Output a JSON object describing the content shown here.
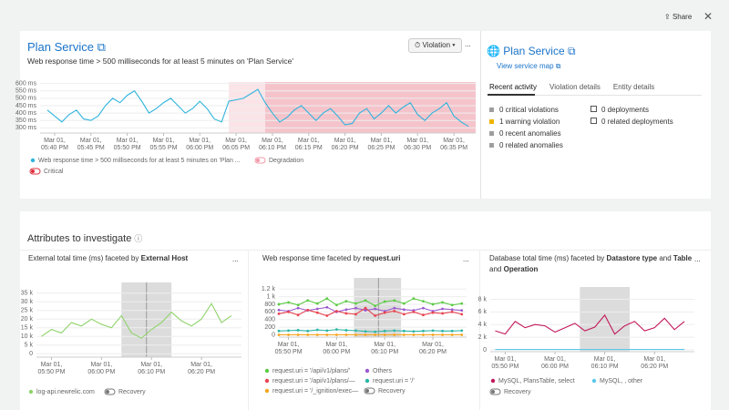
{
  "toolbar": {
    "share": "Share"
  },
  "panel": {
    "title": "Plan Service",
    "subtitle": "Web response time > 500 milliseconds for at least 5 minutes on 'Plan Service'",
    "violation_button": "Violation",
    "more": "..."
  },
  "side": {
    "title": "Plan Service",
    "link": "View service map",
    "tabs": [
      "Recent activity",
      "Violation details",
      "Entity details"
    ],
    "activity": [
      {
        "text": "0 critical violations",
        "color": "#9e9e9e"
      },
      {
        "text": "1 warning violation",
        "color": "#f0b400"
      },
      {
        "text": "0 recent anomalies",
        "color": "#9e9e9e"
      },
      {
        "text": "0 related anomalies",
        "color": "#9e9e9e"
      }
    ],
    "deploys": [
      "0 deployments",
      "0 related deployments"
    ]
  },
  "attributes": {
    "title": "Attributes to investigate"
  },
  "chart_data": [
    {
      "type": "line",
      "x": [
        -1,
        0,
        1,
        2,
        3,
        4,
        5,
        6,
        7,
        8,
        9,
        10,
        11,
        12,
        13,
        14,
        15,
        16,
        17,
        18,
        19,
        20,
        21,
        22,
        23,
        24,
        25,
        26,
        27,
        28,
        29,
        30,
        31,
        32,
        33,
        34,
        35,
        36,
        37,
        38,
        39,
        40,
        41,
        42,
        43,
        44,
        45,
        46,
        47,
        48,
        49,
        50,
        51,
        52,
        53,
        54,
        55,
        56,
        57
      ],
      "series": [
        {
          "name": "Web response time > 500 milliseconds for at least 5 minutes on 'Plan ...",
          "color": "#2fb3dc",
          "values": [
            420,
            380,
            340,
            390,
            420,
            360,
            350,
            380,
            450,
            500,
            470,
            520,
            550,
            480,
            400,
            430,
            470,
            500,
            450,
            400,
            430,
            480,
            430,
            360,
            340,
            480,
            490,
            500,
            530,
            560,
            470,
            400,
            340,
            370,
            420,
            450,
            400,
            350,
            400,
            430,
            380,
            320,
            330,
            400,
            430,
            360,
            400,
            450,
            400,
            440,
            470,
            390,
            350,
            400,
            430,
            470,
            380,
            340,
            310
          ]
        }
      ],
      "bands": [
        {
          "start": 24,
          "end": 29,
          "color": "#fbe4e8"
        },
        {
          "start": 29,
          "end": 58,
          "color": "#f5c4cb"
        }
      ],
      "toggles": [
        "Degradation",
        "Critical"
      ],
      "toggle_colors": [
        "#f29aa8",
        "#e0303e"
      ],
      "xlim": [
        -2,
        58
      ],
      "ylim": [
        265,
        610
      ],
      "xticks": [
        {
          "value": 0,
          "label": [
            "Mar 01,",
            "05:40 PM"
          ]
        },
        {
          "value": 5,
          "label": [
            "Mar 01,",
            "05:45 PM"
          ]
        },
        {
          "value": 10,
          "label": [
            "Mar 01,",
            "05:50 PM"
          ]
        },
        {
          "value": 15,
          "label": [
            "Mar 01,",
            "05:55 PM"
          ]
        },
        {
          "value": 20,
          "label": [
            "Mar 01,",
            "06:00 PM"
          ]
        },
        {
          "value": 25,
          "label": [
            "Mar 01,",
            "06:05 PM"
          ]
        },
        {
          "value": 30,
          "label": [
            "Mar 01,",
            "06:10 PM"
          ]
        },
        {
          "value": 35,
          "label": [
            "Mar 01,",
            "06:15 PM"
          ]
        },
        {
          "value": 40,
          "label": [
            "Mar 01,",
            "06:20 PM"
          ]
        },
        {
          "value": 45,
          "label": [
            "Mar 01,",
            "06:25 PM"
          ]
        },
        {
          "value": 50,
          "label": [
            "Mar 01,",
            "06:30 PM"
          ]
        },
        {
          "value": 55,
          "label": [
            "Mar 01,",
            "06:35 PM"
          ]
        }
      ],
      "yticks": [
        {
          "value": 300,
          "label": "300 ms"
        },
        {
          "value": 350,
          "label": "350 ms"
        },
        {
          "value": 400,
          "label": "400 ms"
        },
        {
          "value": 450,
          "label": "450 ms"
        },
        {
          "value": 500,
          "label": "500 ms"
        },
        {
          "value": 550,
          "label": "550 ms"
        },
        {
          "value": 600,
          "label": "600 ms"
        }
      ],
      "grid": true
    },
    {
      "type": "line",
      "title": [
        "External total time (ms) faceted by",
        "External Host"
      ],
      "title_bold": [
        false,
        true
      ],
      "x": [
        -2,
        0,
        2,
        4,
        6,
        8,
        10,
        12,
        14,
        16,
        18,
        20,
        22,
        24,
        26,
        28,
        30,
        32,
        34,
        36
      ],
      "series": [
        {
          "name": "log-api.newrelic.com",
          "color": "#8fd36b",
          "values": [
            10000,
            14000,
            12000,
            18000,
            16000,
            20000,
            17000,
            15000,
            22000,
            12000,
            9000,
            14000,
            18000,
            24000,
            19000,
            16000,
            20000,
            29000,
            18000,
            22000
          ]
        }
      ],
      "highlight": {
        "start": 14,
        "end": 24,
        "marker": 19
      },
      "toggles": [
        "Recovery"
      ],
      "toggle_colors": [
        "#777777"
      ],
      "xlim": [
        -3,
        38
      ],
      "ylim": [
        -2000,
        37000
      ],
      "xticks": [
        {
          "value": 0,
          "label": [
            "Mar 01,",
            "05:50 PM"
          ]
        },
        {
          "value": 10,
          "label": [
            "Mar 01,",
            "06:00 PM"
          ]
        },
        {
          "value": 20,
          "label": [
            "Mar 01,",
            "06:10 PM"
          ]
        },
        {
          "value": 30,
          "label": [
            "Mar 01,",
            "06:20 PM"
          ]
        }
      ],
      "yticks": [
        0,
        {
          "value": 5000,
          "label": "5 k"
        },
        {
          "value": 10000,
          "label": "10 k"
        },
        {
          "value": 15000,
          "label": "15 k"
        },
        {
          "value": 20000,
          "label": "20 k"
        },
        {
          "value": 25000,
          "label": "25 k"
        },
        {
          "value": 30000,
          "label": "30 k"
        },
        {
          "value": 35000,
          "label": "35 k"
        }
      ],
      "grid": true
    },
    {
      "type": "line",
      "title": [
        "Web response time faceted by",
        "request.uri"
      ],
      "title_bold": [
        false,
        true
      ],
      "markers": true,
      "x": [
        -2,
        0,
        2,
        4,
        6,
        8,
        10,
        12,
        14,
        16,
        18,
        20,
        22,
        24,
        26,
        28,
        30,
        32,
        34,
        36
      ],
      "series": [
        {
          "name": "request.uri = '/api/v1/plans/'",
          "color": "#5ccb45",
          "values": [
            800,
            850,
            780,
            900,
            820,
            950,
            780,
            880,
            820,
            900,
            760,
            870,
            900,
            820,
            950,
            880,
            800,
            850,
            780,
            820
          ]
        },
        {
          "name": "Others",
          "color": "#9b59d0",
          "values": [
            650,
            620,
            700,
            640,
            680,
            720,
            600,
            660,
            700,
            640,
            680,
            620,
            700,
            660,
            640,
            700,
            620,
            680,
            660,
            640
          ]
        },
        {
          "name": "request.uri = '/api/v1/plans/—",
          "color": "#e8434f",
          "values": [
            550,
            600,
            520,
            650,
            580,
            500,
            620,
            560,
            540,
            700,
            500,
            580,
            620,
            540,
            600,
            520,
            580,
            560,
            600,
            540
          ]
        },
        {
          "name": "request.uri = '/'",
          "color": "#2bb5a5",
          "values": [
            100,
            110,
            120,
            100,
            130,
            110,
            140,
            120,
            110,
            90,
            80,
            100,
            110,
            100,
            90,
            100,
            110,
            100,
            100,
            110
          ]
        },
        {
          "name": "request.uri = '/_ignition/exec—",
          "color": "#f5a623",
          "values": [
            0,
            0,
            0,
            0,
            0,
            0,
            0,
            0,
            0,
            0,
            0,
            0,
            0,
            0,
            0,
            0,
            0,
            0,
            0,
            0
          ]
        }
      ],
      "highlight": {
        "start": 13.6,
        "end": 23.4,
        "marker": 18.7
      },
      "toggles": [
        "Recovery"
      ],
      "toggle_colors": [
        "#777777"
      ],
      "xlim": [
        -2,
        37
      ],
      "ylim": [
        -60,
        1300
      ],
      "xticks": [
        {
          "value": 0,
          "label": [
            "Mar 01,",
            "05:50 PM"
          ]
        },
        {
          "value": 10,
          "label": [
            "Mar 01,",
            "06:00 PM"
          ]
        },
        {
          "value": 20,
          "label": [
            "Mar 01,",
            "06:10 PM"
          ]
        },
        {
          "value": 30,
          "label": [
            "Mar 01,",
            "06:20 PM"
          ]
        }
      ],
      "yticks": [
        0,
        200,
        400,
        600,
        800,
        {
          "value": 1000,
          "label": "1 k"
        },
        {
          "value": 1200,
          "label": "1.2 k"
        }
      ],
      "grid": true
    },
    {
      "type": "line",
      "title": [
        "Database total time (ms) faceted by",
        "Datastore type",
        "and",
        "Table",
        "and",
        "Operation"
      ],
      "title_bold": [
        false,
        true,
        false,
        true,
        false,
        true
      ],
      "x": [
        -2,
        0,
        2,
        4,
        6,
        8,
        10,
        12,
        14,
        16,
        18,
        20,
        22,
        24,
        26,
        28,
        30,
        32,
        34,
        36
      ],
      "series": [
        {
          "name": "MySQL, PlansTable, select",
          "color": "#c2185b",
          "values": [
            3000,
            2500,
            4500,
            3500,
            4000,
            3800,
            2800,
            3500,
            4200,
            3000,
            3600,
            5500,
            2500,
            3800,
            4500,
            3000,
            3500,
            5000,
            3200,
            4500
          ]
        },
        {
          "name": "MySQL, , other",
          "color": "#5bc8e8",
          "values": [
            50,
            50,
            50,
            50,
            50,
            50,
            50,
            50,
            50,
            50,
            50,
            50,
            50,
            50,
            50,
            50,
            50,
            50,
            50,
            50
          ]
        }
      ],
      "highlight": {
        "start": 15,
        "end": 25
      },
      "toggles": [
        "Recovery"
      ],
      "toggle_colors": [
        "#777777"
      ],
      "xlim": [
        -3,
        38
      ],
      "ylim": [
        -300,
        8800
      ],
      "xticks": [
        {
          "value": 0,
          "label": [
            "Mar 01,",
            "05:50 PM"
          ]
        },
        {
          "value": 10,
          "label": [
            "Mar 01,",
            "06:00 PM"
          ]
        },
        {
          "value": 20,
          "label": [
            "Mar 01,",
            "06:10 PM"
          ]
        },
        {
          "value": 30,
          "label": [
            "Mar 01,",
            "06:20 PM"
          ]
        }
      ],
      "yticks": [
        0,
        {
          "value": 2000,
          "label": "2 k"
        },
        {
          "value": 4000,
          "label": "4 k"
        },
        {
          "value": 6000,
          "label": "6 k"
        },
        {
          "value": 8000,
          "label": "8 k"
        }
      ],
      "grid": true
    }
  ]
}
